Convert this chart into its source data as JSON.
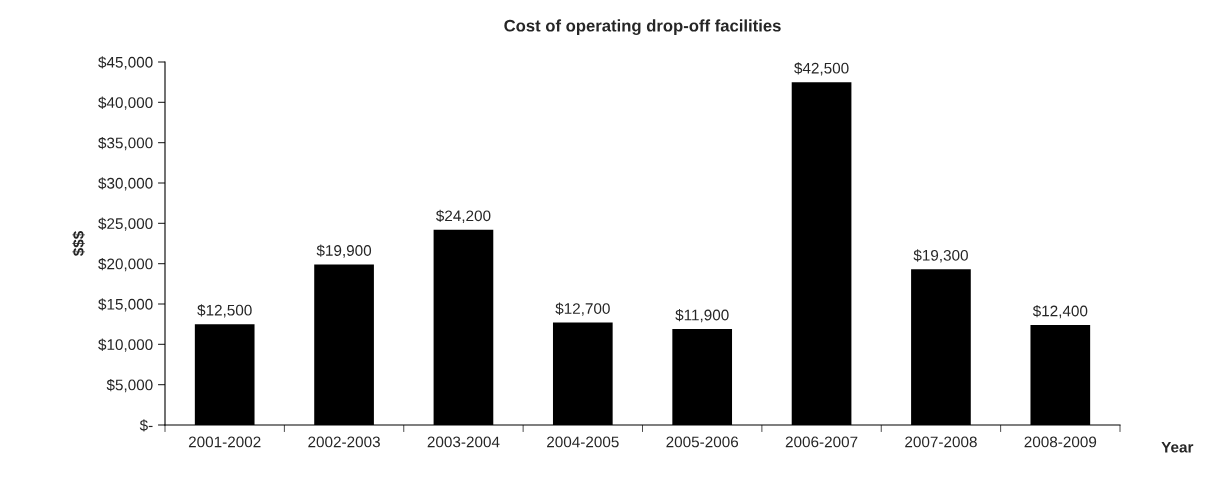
{
  "chart_data": {
    "type": "bar",
    "title": "Cost of operating drop-off facilities",
    "xlabel": "Year",
    "ylabel": "$$$",
    "categories": [
      "2001-2002",
      "2002-2003",
      "2003-2004",
      "2004-2005",
      "2005-2006",
      "2006-2007",
      "2007-2008",
      "2008-2009"
    ],
    "values": [
      12500,
      19900,
      24200,
      12700,
      11900,
      42500,
      19300,
      12400
    ],
    "value_labels": [
      "$12,500",
      "$19,900",
      "$24,200",
      "$12,700",
      "$11,900",
      "$42,500",
      "$19,300",
      "$12,400"
    ],
    "color": "#000000",
    "ylim": [
      0,
      45000
    ],
    "yticks": [
      {
        "value": 0,
        "label": "$-"
      },
      {
        "value": 5000,
        "label": "$5,000"
      },
      {
        "value": 10000,
        "label": "$10,000"
      },
      {
        "value": 15000,
        "label": "$15,000"
      },
      {
        "value": 20000,
        "label": "$20,000"
      },
      {
        "value": 25000,
        "label": "$25,000"
      },
      {
        "value": 30000,
        "label": "$30,000"
      },
      {
        "value": 35000,
        "label": "$35,000"
      },
      {
        "value": 40000,
        "label": "$40,000"
      },
      {
        "value": 45000,
        "label": "$45,000"
      }
    ],
    "grid": false
  }
}
